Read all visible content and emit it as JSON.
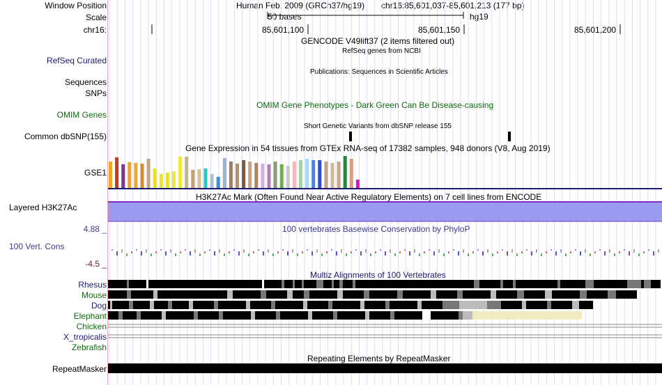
{
  "ruler": {
    "window_position_label": "Window Position",
    "scale_label": "Scale",
    "chrom_label": "chr16:",
    "assembly": "Human Feb. 2009 (GRCh37/hg19)",
    "position": "chr16:85,601,037-85,601,213 (177 bp)",
    "scale_value": "50 bases",
    "scale_db": "hg19",
    "ticks": [
      "85,601,100",
      "85,601,150",
      "85,601,200"
    ]
  },
  "tracks": {
    "gencode": {
      "title": "GENCODE V49lift37 (2 items filtered out)"
    },
    "refseq": {
      "label": "RefSeq Curated",
      "title": "RefSeq genes from NCBI"
    },
    "publications": {
      "title": "Publications: Sequences in Scientific Articles"
    },
    "sequences": {
      "label": "Sequences"
    },
    "snps": {
      "label": "SNPs"
    },
    "omim": {
      "label": "OMIM Genes",
      "title": "OMIM Gene Phenotypes - Dark Green Can Be Disease-causing"
    },
    "dbsnp": {
      "label": "Common dbSNP(155)",
      "title": "Short Genetic Variants from dbSNP release 155"
    },
    "gtex": {
      "label": "GSE1",
      "title": "Gene Expression in 54 tissues from GTEx RNA-seq of 17382 samples, 948 donors (V8, Aug 2019)"
    },
    "h3k27ac": {
      "label": "Layered H3K27Ac",
      "title": "H3K27Ac Mark (Often Found Near Active Regulatory Elements) on 7 cell lines from ENCODE"
    },
    "conservation": {
      "label": "100 Vert. Cons",
      "title": "100 vertebrates Basewise Conservation by PhyloP",
      "ymax": "4.88 _",
      "ymin": "-4.5 _"
    },
    "multiz": {
      "title": "Multiz Alignments of 100 Vertebrates",
      "species": [
        "Rhesus",
        "Mouse",
        "Dog",
        "Elephant",
        "Chicken",
        "X_tropicalis",
        "Zebrafish"
      ]
    },
    "repeatmasker": {
      "label": "RepeatMasker",
      "title": "Repeating Elements by RepeatMasker"
    }
  },
  "colors": {
    "h3k27ac_fill": "#9b9bf0",
    "h3k27ac_border": "#7a2fc8",
    "divider": "#ff9fb0",
    "gridline": "#dcdcf0",
    "gtex_bars": [
      "#f5a623",
      "#c23b22",
      "#7a3b8c",
      "#f0a030",
      "#e8a838",
      "#d98a38",
      "#c4a484",
      "#e6e02a",
      "#eae52e",
      "#e8e02c",
      "#efe837",
      "#f2e833",
      "#c9b38f",
      "#c4a077",
      "#ddc090",
      "#27c8c8",
      "#aebfd8",
      "#3f8fd8",
      "#9fb0c8",
      "#a47d5a",
      "#b09070",
      "#7f5a40",
      "#c4a484",
      "#b08060",
      "#d0b0e0",
      "#b07fb0",
      "#8c9c70",
      "#6ab04a",
      "#c8c8c8",
      "#f5b8c0",
      "#9ad99a",
      "#a8d8f8",
      "#3f88e8",
      "#2e4fc8",
      "#c4a484",
      "#d4b898",
      "#c8a888",
      "#1e8b3a",
      "#d6a080",
      "#e010d0"
    ]
  }
}
